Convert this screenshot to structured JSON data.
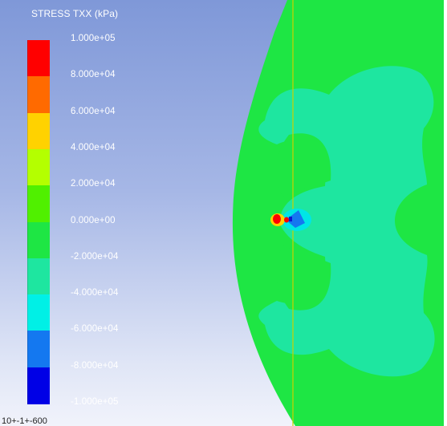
{
  "legend": {
    "title": "STRESS TXX (kPa)",
    "levels": [
      {
        "label": "1.000e+05",
        "color": "#ff0000"
      },
      {
        "label": "8.000e+04",
        "color": "#ff6a00"
      },
      {
        "label": "6.000e+04",
        "color": "#ffd200"
      },
      {
        "label": "4.000e+04",
        "color": "#b4ff00"
      },
      {
        "label": "2.000e+04",
        "color": "#50f000"
      },
      {
        "label": "0.000e+00",
        "color": "#1ee644"
      },
      {
        "label": "-2.000e+04",
        "color": "#1ee6a0"
      },
      {
        "label": "-4.000e+04",
        "color": "#00f0e6"
      },
      {
        "label": "-6.000e+04",
        "color": "#1478f0"
      },
      {
        "label": "-8.000e+04",
        "color": "#0000e6"
      },
      {
        "label": "-1.000e+05",
        "color": ""
      }
    ]
  },
  "status": {
    "text": "10+-1+-600"
  },
  "colors": {
    "background_top": "#7f98d8",
    "background_bottom": "#f1f3fb",
    "field_main": "#1ee644",
    "field_cyan": "#1ee6a0",
    "hotspot_red": "#ff0000",
    "hotspot_blue": "#1478f0",
    "interface_line": "#c8d200"
  }
}
